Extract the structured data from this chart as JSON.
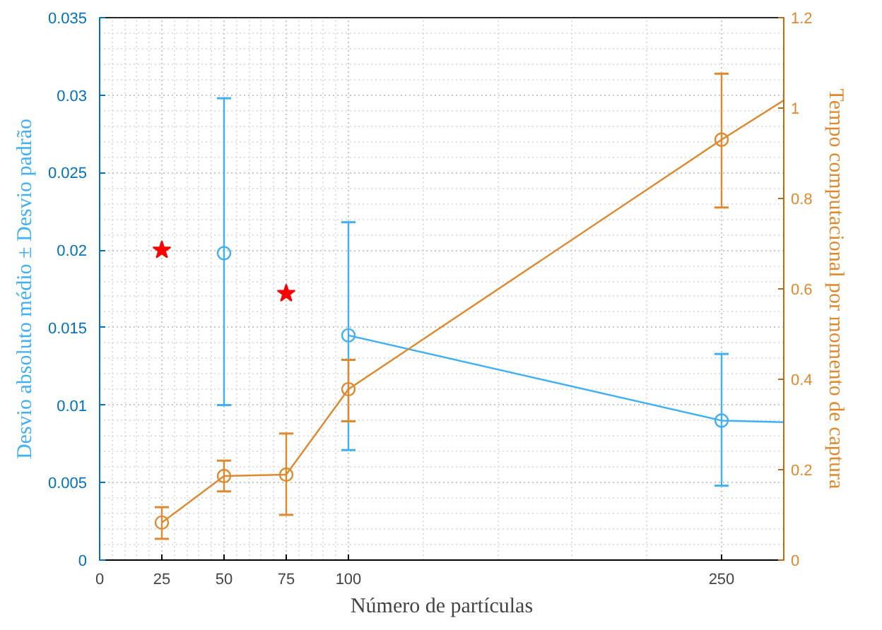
{
  "chart_data": {
    "type": "line",
    "xlabel": "Número de partículas",
    "ylabel": "Desvio absoluto médio ± Desvio padrão",
    "y2label": "Tempo computacional por momento de captura",
    "xlim": [
      0,
      275
    ],
    "xticks": [
      0,
      25,
      50,
      75,
      100,
      250
    ],
    "ylim": [
      0,
      0.035
    ],
    "yticks": [
      0,
      0.005,
      0.01,
      0.015,
      0.02,
      0.025,
      0.03,
      0.035
    ],
    "y2lim": [
      0,
      1.2
    ],
    "y2ticks": [
      0,
      0.2,
      0.4,
      0.6,
      0.8,
      1,
      1.2
    ],
    "grid": true,
    "series": [
      {
        "color": "#3fb0f5",
        "marker": "none",
        "x": [
          100,
          250,
          275
        ],
        "values": [
          0.0145,
          0.009,
          0.0089
        ]
      },
      {
        "type": "scatter",
        "color": "#3fb0f5",
        "marker": "circle",
        "x": [
          50,
          100,
          250
        ],
        "values": [
          0.0198,
          0.0145,
          0.009
        ],
        "errors": [
          [
            0.01,
            0.0298
          ],
          [
            0.0071,
            0.0218
          ],
          [
            0.0048,
            0.0133
          ]
        ]
      },
      {
        "type": "scatter",
        "color": "#ff0000",
        "marker": "star",
        "x": [
          25,
          75
        ],
        "values": [
          0.02,
          0.0172
        ]
      },
      {
        "axis": "y2",
        "color": "#e0892c",
        "marker": "none",
        "x": [
          25,
          50,
          75,
          100,
          250,
          275
        ],
        "values": [
          0.083,
          0.186,
          0.189,
          0.378,
          0.93,
          1.017
        ]
      },
      {
        "type": "scatter",
        "axis": "y2",
        "color": "#e0892c",
        "marker": "circle",
        "x": [
          25,
          50,
          75,
          100,
          250
        ],
        "values": [
          0.083,
          0.186,
          0.189,
          0.378,
          0.93
        ],
        "errors": [
          [
            0.047,
            0.117
          ],
          [
            0.152,
            0.22
          ],
          [
            0.1,
            0.28
          ],
          [
            0.307,
            0.443
          ],
          [
            0.78,
            1.076
          ]
        ]
      }
    ]
  }
}
